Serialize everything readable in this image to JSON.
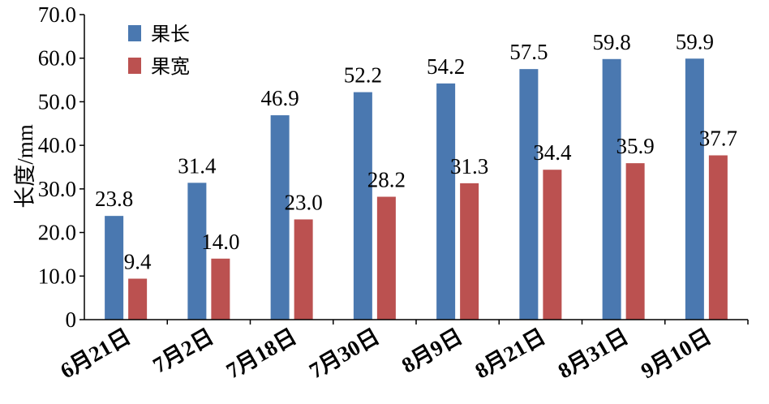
{
  "chart_data": {
    "type": "bar",
    "title": "",
    "xlabel": "",
    "ylabel": "长度/mm",
    "ylim": [
      0,
      70
    ],
    "yticks": [
      "0",
      "10.0",
      "20.0",
      "30.0",
      "40.0",
      "50.0",
      "60.0",
      "70.0"
    ],
    "grid": false,
    "legend_position": "top-left",
    "categories": [
      "6月21日",
      "7月2日",
      "7月18日",
      "7月30日",
      "8月9日",
      "8月21日",
      "8月31日",
      "9月10日"
    ],
    "series": [
      {
        "name": "果长",
        "color": "#4a78b0",
        "values": [
          23.8,
          31.4,
          46.9,
          52.2,
          54.2,
          57.5,
          59.8,
          59.9
        ],
        "labels": [
          "23.8",
          "31.4",
          "46.9",
          "52.2",
          "54.2",
          "57.5",
          "59.8",
          "59.9"
        ]
      },
      {
        "name": "果宽",
        "color": "#bb5150",
        "values": [
          9.4,
          14.0,
          23.0,
          28.2,
          31.3,
          34.4,
          35.9,
          37.7
        ],
        "labels": [
          "9.4",
          "14.0",
          "23.0",
          "28.2",
          "31.3",
          "34.4",
          "35.9",
          "37.7"
        ]
      }
    ]
  }
}
